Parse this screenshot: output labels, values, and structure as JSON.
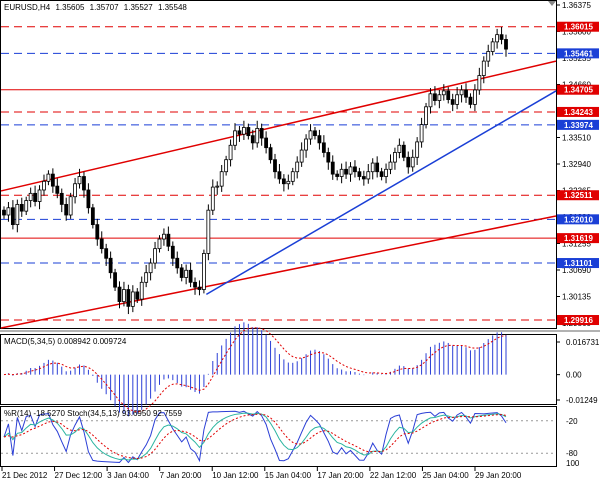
{
  "chart_data": {
    "type": "candlestick",
    "symbol_label": "EURUSD,H4",
    "ohlc_header": [
      "1.35605",
      "1.35707",
      "1.35527",
      "1.35548"
    ],
    "price_axis": {
      "ylim": [
        1.2975,
        1.3655
      ],
      "ticks": [
        "1.36375",
        "1.35800",
        "1.35235",
        "1.34660",
        "1.34085",
        "1.33510",
        "1.32940",
        "1.32365",
        "1.31830",
        "1.31255",
        "1.30690",
        "1.30135",
        "1.29560"
      ]
    },
    "horizontal_levels": [
      {
        "value": 1.36015,
        "label": "1.36015",
        "style": "dashed",
        "color": "#e00000"
      },
      {
        "value": 1.35461,
        "label": "1.35461",
        "style": "dashed",
        "color": "#1a3fd6"
      },
      {
        "value": 1.34705,
        "label": "1.34705",
        "style": "solid",
        "color": "#e00000"
      },
      {
        "value": 1.34243,
        "label": "1.34243",
        "style": "dashed",
        "color": "#e00000"
      },
      {
        "value": 1.33974,
        "label": "1.33974",
        "style": "dashed",
        "color": "#1a3fd6"
      },
      {
        "value": 1.32511,
        "label": "1.32511",
        "style": "dashed",
        "color": "#e00000"
      },
      {
        "value": 1.3201,
        "label": "1.32010",
        "style": "dashed",
        "color": "#1a3fd6"
      },
      {
        "value": 1.31619,
        "label": "1.31619",
        "style": "solid",
        "color": "#e00000"
      },
      {
        "value": 1.31101,
        "label": "1.31101",
        "style": "dashed",
        "color": "#1a3fd6"
      },
      {
        "value": 1.29916,
        "label": "1.29916",
        "style": "dashed",
        "color": "#e00000"
      }
    ],
    "trendlines": [
      {
        "name": "upper-channel",
        "color": "#e00000",
        "from": [
          0,
          1.326
        ],
        "to": [
          1,
          1.353
        ]
      },
      {
        "name": "lower-channel",
        "color": "#e00000",
        "from": [
          0,
          1.2975
        ],
        "to": [
          1,
          1.3208
        ]
      },
      {
        "name": "support-line",
        "color": "#1a3fd6",
        "from": [
          0.37,
          1.3045
        ],
        "to": [
          1,
          1.3468
        ]
      }
    ],
    "current_price": 1.35548,
    "closes": [
      1.321,
      1.3225,
      1.319,
      1.3232,
      1.3218,
      1.324,
      1.3255,
      1.3238,
      1.3262,
      1.328,
      1.3295,
      1.327,
      1.3255,
      1.3232,
      1.321,
      1.3248,
      1.3275,
      1.329,
      1.3262,
      1.3225,
      1.319,
      1.316,
      1.314,
      1.312,
      1.309,
      1.306,
      1.303,
      1.3055,
      1.302,
      1.305,
      1.3035,
      1.307,
      1.309,
      1.311,
      1.314,
      1.316,
      1.317,
      1.3145,
      1.312,
      1.31,
      1.308,
      1.3095,
      1.307,
      1.306,
      1.3055,
      1.313,
      1.322,
      1.3268,
      1.327,
      1.33,
      1.3325,
      1.3355,
      1.3385,
      1.3378,
      1.3392,
      1.3375,
      1.336,
      1.339,
      1.337,
      1.335,
      1.3325,
      1.33,
      1.3285,
      1.3275,
      1.328,
      1.33,
      1.332,
      1.3345,
      1.3368,
      1.3385,
      1.3375,
      1.336,
      1.334,
      1.332,
      1.3295,
      1.329,
      1.3305,
      1.3295,
      1.331,
      1.33,
      1.329,
      1.3285,
      1.33,
      1.3318,
      1.33,
      1.329,
      1.3305,
      1.332,
      1.334,
      1.3355,
      1.333,
      1.331,
      1.333,
      1.3362,
      1.3398,
      1.3435,
      1.3462,
      1.3448,
      1.346,
      1.3468,
      1.345,
      1.344,
      1.346,
      1.347,
      1.3455,
      1.344,
      1.347,
      1.35,
      1.353,
      1.355,
      1.357,
      1.3585,
      1.3575,
      1.3555
    ],
    "x_tick_labels": [
      "21 Dec 2012",
      "27 Dec 12:00",
      "3 Jan 04:00",
      "7 Jan 20:00",
      "10 Jan 12:00",
      "15 Jan 04:00",
      "17 Jan 20:00",
      "22 Jan 12:00",
      "25 Jan 04:00",
      "29 Jan 20:00"
    ],
    "macd": {
      "label": "MACD(5,34,5) 0.008942 0.009724",
      "ylim": [
        -0.01249,
        0.016731
      ],
      "ticks": [
        "0.016731",
        "0.00",
        "-0.01249"
      ]
    },
    "oscillator": {
      "label": "%R(14) -18.5270  Stoch(34,5,13) 93.6950 92.7559",
      "ticks": [
        "-20",
        "-80",
        "100"
      ]
    }
  }
}
